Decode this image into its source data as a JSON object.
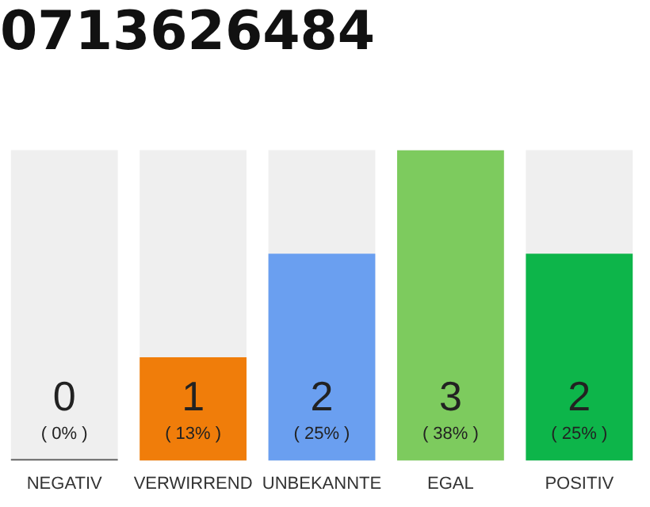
{
  "chart_data": {
    "type": "bar",
    "title": "0713626484",
    "categories": [
      "NEGATIV",
      "VERWIRREND",
      "UNBEKANNTE",
      "EGAL",
      "POSITIV"
    ],
    "values": [
      0,
      1,
      2,
      3,
      2
    ],
    "value_labels": [
      "0 ( 0% )",
      "1 ( 13% )",
      "2 ( 25% )",
      "3 ( 38% )",
      "2 ( 25% )"
    ],
    "colors": [
      "#555555",
      "#f07d0a",
      "#6a9ff0",
      "#7dcb5e",
      "#0db54a"
    ],
    "ylim": [
      0,
      3
    ],
    "grid": false,
    "legend": false
  }
}
